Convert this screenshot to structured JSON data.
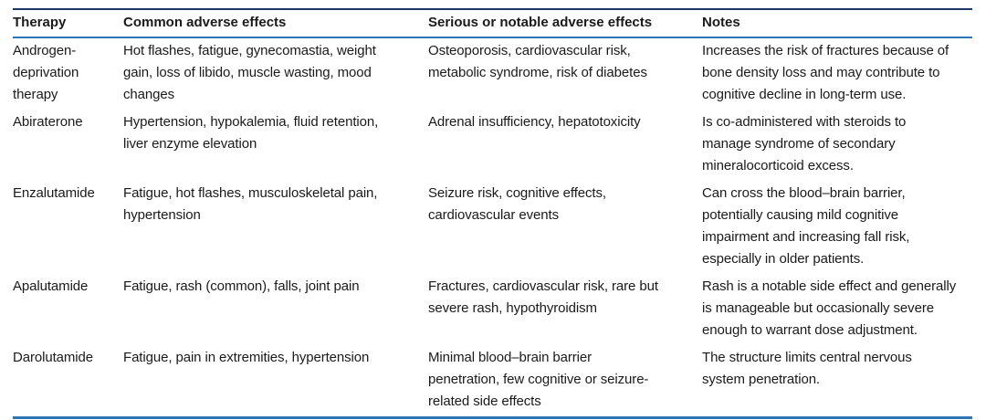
{
  "colors": {
    "top_rule": "#1f3864",
    "accent_rule_blue": "#2e75b6",
    "text": "#1a1a1a",
    "background": "#ffffff"
  },
  "table": {
    "columns": [
      "Therapy",
      "Common adverse effects",
      "Serious or notable adverse effects",
      "Notes"
    ],
    "rows": [
      {
        "therapy": "Androgen-\ndeprivation\ntherapy",
        "common": "Hot flashes, fatigue, gynecomastia, weight\ngain, loss of libido, muscle wasting, mood\nchanges",
        "serious": "Osteoporosis, cardiovascular risk,\nmetabolic syndrome, risk of diabetes",
        "notes": "Increases the risk of fractures because of\nbone density loss and may contribute to\ncognitive decline in long-term use."
      },
      {
        "therapy": "Abiraterone",
        "common": "Hypertension, hypokalemia, fluid retention,\nliver enzyme elevation",
        "serious": "Adrenal insufficiency, hepatotoxicity",
        "notes": "Is co-administered with steroids to\nmanage syndrome of secondary\nmineralocorticoid excess."
      },
      {
        "therapy": "Enzalutamide",
        "common": "Fatigue, hot flashes, musculoskeletal pain,\nhypertension",
        "serious": "Seizure risk, cognitive effects,\ncardiovascular events",
        "notes": "Can cross the blood–brain barrier,\npotentially causing mild cognitive\nimpairment and increasing fall risk,\nespecially in older patients."
      },
      {
        "therapy": "Apalutamide",
        "common": "Fatigue, rash (common), falls, joint pain",
        "serious": "Fractures, cardiovascular risk, rare but\nsevere rash, hypothyroidism",
        "notes": "Rash is a notable side effect and generally\nis manageable but occasionally severe\nenough to warrant dose adjustment."
      },
      {
        "therapy": "Darolutamide",
        "common": "Fatigue, pain in extremities, hypertension",
        "serious": "Minimal blood–brain barrier\npenetration, few cognitive or seizure-\nrelated side effects",
        "notes": "The structure limits central nervous\nsystem penetration."
      }
    ]
  }
}
